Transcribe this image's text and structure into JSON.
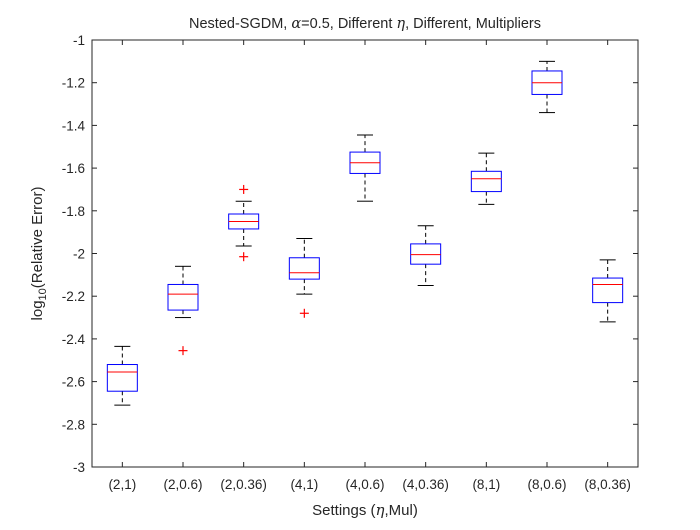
{
  "chart_data": {
    "type": "box",
    "title_parts": [
      "Nested-SGDM, ",
      "α",
      "=0.5, Different ",
      "η",
      ", Different, Multipliers"
    ],
    "xlabel_parts": [
      "Settings (",
      "η",
      ",Mul)"
    ],
    "ylabel_parts": [
      "log",
      "10",
      "(Relative Error)"
    ],
    "ylim": [
      -3,
      -1
    ],
    "y_ticks": [
      -3,
      -2.8,
      -2.6,
      -2.4,
      -2.2,
      -2,
      -1.8,
      -1.6,
      -1.4,
      -1.2,
      -1
    ],
    "y_tick_labels": [
      "-3",
      "-2.8",
      "-2.6",
      "-2.4",
      "-2.2",
      "-2",
      "-1.8",
      "-1.6",
      "-1.4",
      "-1.2",
      "-1"
    ],
    "categories": [
      "(2,1)",
      "(2,0.6)",
      "(2,0.36)",
      "(4,1)",
      "(4,0.6)",
      "(4,0.36)",
      "(8,1)",
      "(8,0.6)",
      "(8,0.36)"
    ],
    "boxes": [
      {
        "whisker_low": -2.71,
        "q1": -2.645,
        "median": -2.555,
        "q3": -2.52,
        "whisker_high": -2.435,
        "outliers": []
      },
      {
        "whisker_low": -2.3,
        "q1": -2.265,
        "median": -2.19,
        "q3": -2.145,
        "whisker_high": -2.06,
        "outliers": [
          -2.455
        ]
      },
      {
        "whisker_low": -1.965,
        "q1": -1.885,
        "median": -1.85,
        "q3": -1.815,
        "whisker_high": -1.755,
        "outliers": [
          -2.015,
          -1.7
        ]
      },
      {
        "whisker_low": -2.19,
        "q1": -2.12,
        "median": -2.09,
        "q3": -2.02,
        "whisker_high": -1.93,
        "outliers": [
          -2.28
        ]
      },
      {
        "whisker_low": -1.755,
        "q1": -1.625,
        "median": -1.575,
        "q3": -1.525,
        "whisker_high": -1.445,
        "outliers": []
      },
      {
        "whisker_low": -2.15,
        "q1": -2.05,
        "median": -2.005,
        "q3": -1.955,
        "whisker_high": -1.87,
        "outliers": []
      },
      {
        "whisker_low": -1.77,
        "q1": -1.71,
        "median": -1.65,
        "q3": -1.615,
        "whisker_high": -1.53,
        "outliers": []
      },
      {
        "whisker_low": -1.34,
        "q1": -1.255,
        "median": -1.2,
        "q3": -1.145,
        "whisker_high": -1.1,
        "outliers": []
      },
      {
        "whisker_low": -2.32,
        "q1": -2.23,
        "median": -2.145,
        "q3": -2.115,
        "whisker_high": -2.03,
        "outliers": []
      }
    ],
    "grid": false,
    "colors": {
      "box": "#0000ff",
      "median": "#ff0000",
      "whisker": "#000000",
      "outlier": "#ff0000",
      "axes": "#262626"
    }
  }
}
